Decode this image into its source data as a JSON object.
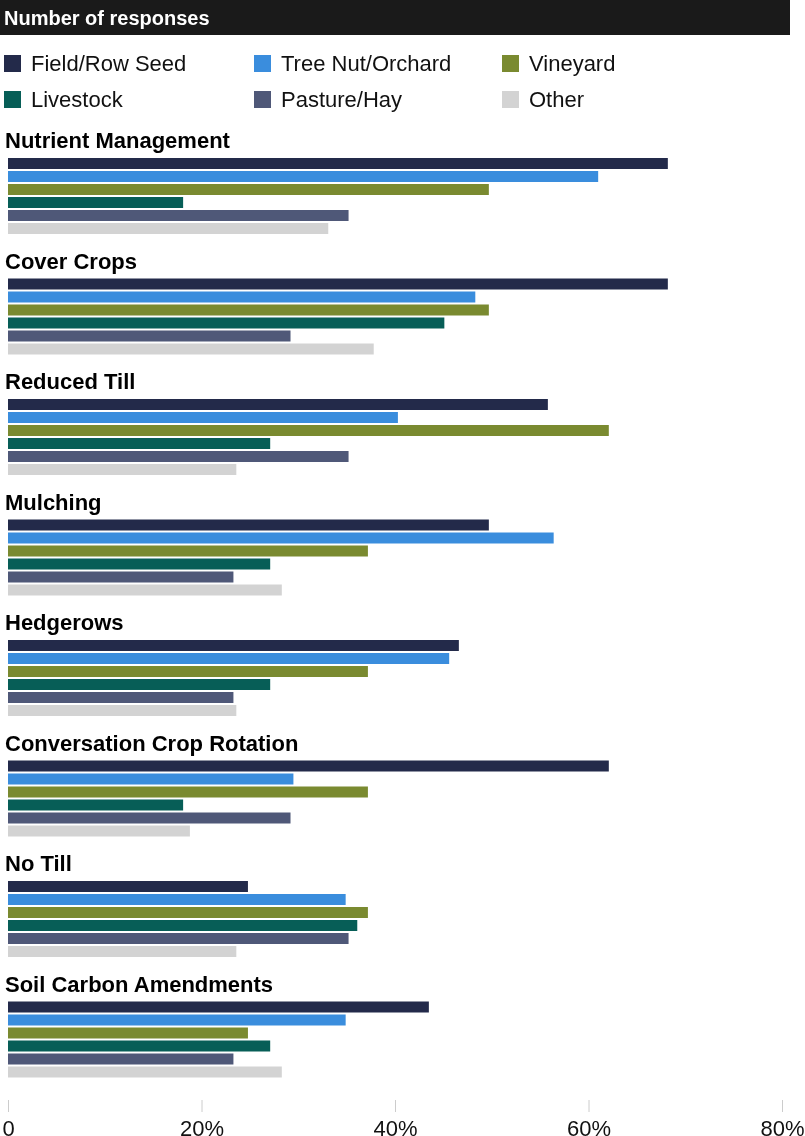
{
  "chart_data": {
    "type": "bar",
    "orientation": "horizontal",
    "title": "Number of responses",
    "categories": [
      "Nutrient Management",
      "Cover Crops",
      "Reduced Till",
      "Mulching",
      "Hedgerows",
      "Conversation Crop Rotation",
      "No Till",
      "Soil Carbon Amendments"
    ],
    "series": [
      {
        "name": "Field/Row Seed",
        "color": "#232a4a",
        "values": [
          68.2,
          68.2,
          55.8,
          49.7,
          46.6,
          62.1,
          24.8,
          43.5
        ]
      },
      {
        "name": "Tree Nut/Orchard",
        "color": "#3a8ddd",
        "values": [
          61,
          48.3,
          40.3,
          56.4,
          45.6,
          29.5,
          34.9,
          34.9
        ]
      },
      {
        "name": "Vineyard",
        "color": "#7a8a30",
        "values": [
          49.7,
          49.7,
          62.1,
          37.2,
          37.2,
          37.2,
          37.2,
          24.8
        ]
      },
      {
        "name": "Livestock",
        "color": "#075e57",
        "values": [
          18.1,
          45.1,
          27.1,
          27.1,
          27.1,
          18.1,
          36.1,
          27.1
        ]
      },
      {
        "name": "Pasture/Hay",
        "color": "#4f5878",
        "values": [
          35.2,
          29.2,
          35.2,
          23.3,
          23.3,
          29.2,
          35.2,
          23.3
        ]
      },
      {
        "name": "Other",
        "color": "#d3d3d3",
        "values": [
          33.1,
          37.8,
          23.6,
          28.3,
          23.6,
          18.8,
          23.6,
          28.3
        ]
      }
    ],
    "xlim": [
      0,
      80
    ],
    "xticks": [
      0,
      {
        "value": 20,
        "label": "20%"
      },
      {
        "value": 40,
        "label": "40%"
      },
      {
        "value": 60,
        "label": "60%"
      },
      {
        "value": 80,
        "label": "80%"
      }
    ],
    "legend": "top",
    "grid": false
  }
}
